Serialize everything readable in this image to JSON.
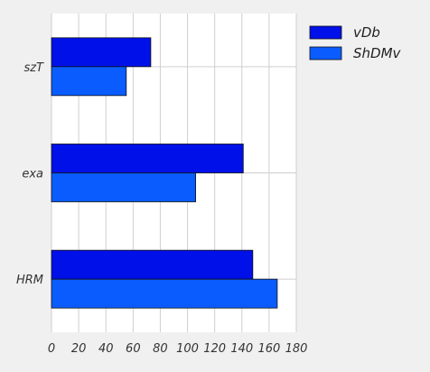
{
  "chart_data": {
    "type": "bar",
    "orientation": "horizontal",
    "categories": [
      "szT",
      "exa",
      "HRM"
    ],
    "series": [
      {
        "name": "vDb",
        "values": [
          73,
          141,
          148
        ],
        "color": "#0010e8"
      },
      {
        "name": "ShDMv",
        "values": [
          55,
          106,
          166
        ],
        "color": "#0a5cff"
      }
    ],
    "xlim": [
      0,
      180
    ],
    "xticks": [
      0,
      20,
      40,
      60,
      80,
      100,
      120,
      140,
      160,
      180
    ],
    "title": "",
    "xlabel": "",
    "ylabel": "",
    "grid": true,
    "legend_position": "top-right",
    "colors": {
      "background": "#f0f0f0",
      "plot_area": "#ffffff",
      "grid": "#cfcfcf"
    }
  }
}
